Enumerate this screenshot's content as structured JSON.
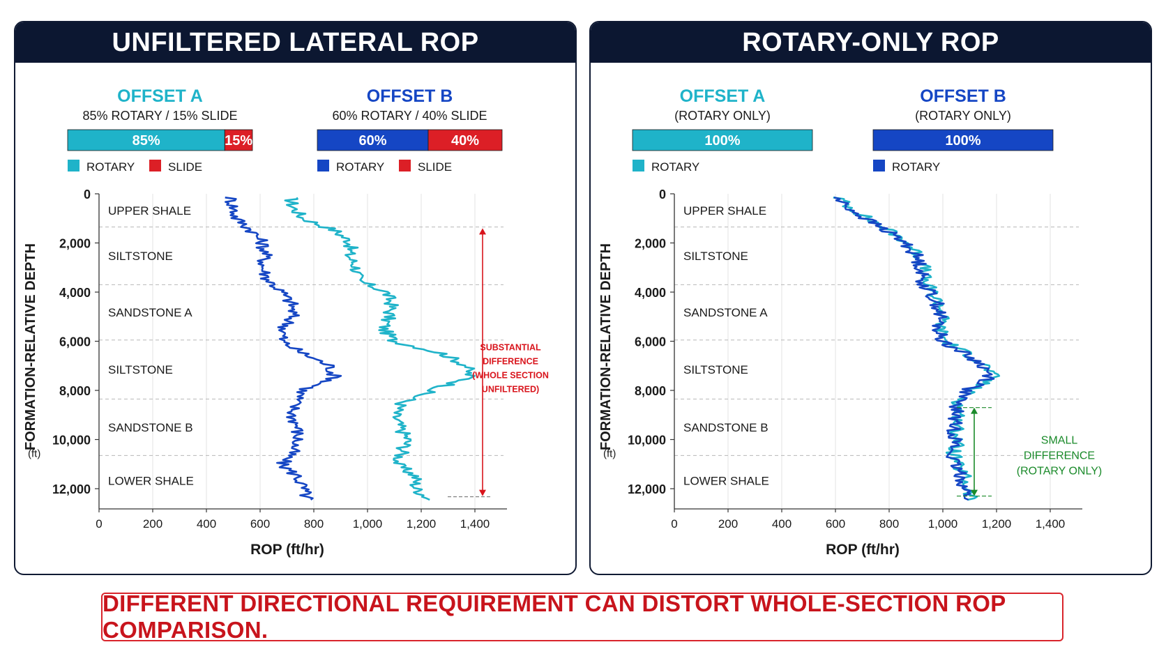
{
  "footer": {
    "text": "DIFFERENT DIRECTIONAL REQUIREMENT CAN DISTORT WHOLE-SECTION ROP COMPARISON."
  },
  "colors": {
    "offset_a": "#1fb3c9",
    "offset_b": "#1546c4",
    "slide": "#dc1f26",
    "header_bg": "#0c1731",
    "note_red": "#d9141c",
    "note_green": "#1a8a2a"
  },
  "panels": [
    {
      "title": "UNFILTERED LATERAL ROP",
      "offsets": [
        {
          "name": "OFFSET A",
          "subtitle": "85% ROTARY / 15% SLIDE",
          "segments": [
            {
              "label": "85%",
              "value": 85,
              "kind": "rotary"
            },
            {
              "label": "15%",
              "value": 15,
              "kind": "slide"
            }
          ],
          "legend": [
            "ROTARY",
            "SLIDE"
          ]
        },
        {
          "name": "OFFSET B",
          "subtitle": "60% ROTARY / 40% SLIDE",
          "segments": [
            {
              "label": "60%",
              "value": 60,
              "kind": "rotary"
            },
            {
              "label": "40%",
              "value": 40,
              "kind": "slide"
            }
          ],
          "legend": [
            "ROTARY",
            "SLIDE"
          ]
        }
      ],
      "annotation": {
        "lines": [
          "SUBSTANTIAL",
          "DIFFERENCE",
          "(WHOLE SECTION",
          "UNFILTERED)"
        ],
        "color": "red",
        "range": [
          1400,
          12300
        ]
      }
    },
    {
      "title": "ROTARY-ONLY ROP",
      "offsets": [
        {
          "name": "OFFSET A",
          "subtitle": "(ROTARY ONLY)",
          "segments": [
            {
              "label": "100%",
              "value": 100,
              "kind": "rotary"
            }
          ],
          "legend": [
            "ROTARY"
          ]
        },
        {
          "name": "OFFSET B",
          "subtitle": "(ROTARY ONLY)",
          "segments": [
            {
              "label": "100%",
              "value": 100,
              "kind": "rotary"
            }
          ],
          "legend": [
            "ROTARY"
          ]
        }
      ],
      "annotation": {
        "lines": [
          "SMALL",
          "DIFFERENCE",
          "(ROTARY ONLY)"
        ],
        "color": "green",
        "range": [
          8700,
          12300
        ]
      }
    }
  ],
  "chart_data": [
    {
      "type": "line",
      "xlabel": "ROP (ft/hr)",
      "ylabel": "FORMATION-RELATIVE DEPTH",
      "ylabel_unit": "(ft)",
      "xlim": [
        0,
        1500
      ],
      "ylim": [
        0,
        12800
      ],
      "xticks": [
        0,
        200,
        400,
        600,
        800,
        1000,
        1200,
        1400
      ],
      "xtick_labels": [
        "0",
        "200",
        "400",
        "600",
        "800",
        "1,000",
        "1,200",
        "1,400"
      ],
      "yticks": [
        0,
        2000,
        4000,
        6000,
        8000,
        10000,
        12000
      ],
      "ytick_labels": [
        "0",
        "2,000",
        "4,000",
        "6,000",
        "8,000",
        "10,000",
        "12,000"
      ],
      "formations": [
        {
          "name": "UPPER SHALE",
          "top": 0,
          "base": 1350
        },
        {
          "name": "SILTSTONE",
          "top": 1350,
          "base": 3700
        },
        {
          "name": "SANDSTONE A",
          "top": 3700,
          "base": 5950
        },
        {
          "name": "SILTSTONE",
          "top": 5950,
          "base": 8350
        },
        {
          "name": "SANDSTONE B",
          "top": 8350,
          "base": 10650
        },
        {
          "name": "LOWER SHALE",
          "top": 10650,
          "base": 12700
        }
      ],
      "series": [
        {
          "name": "OFFSET A",
          "color_key": "offset_a",
          "depth": [
            150,
            500,
            1000,
            1500,
            2000,
            2500,
            3000,
            3500,
            4000,
            4500,
            5000,
            5500,
            6000,
            6500,
            7000,
            7500,
            8000,
            8500,
            9000,
            9500,
            10000,
            10500,
            11000,
            11500,
            12000,
            12500
          ],
          "rop": [
            715,
            720,
            760,
            880,
            940,
            930,
            960,
            960,
            1070,
            1090,
            1080,
            1060,
            1100,
            1280,
            1370,
            1380,
            1240,
            1130,
            1100,
            1120,
            1150,
            1130,
            1110,
            1180,
            1180,
            1240
          ]
        },
        {
          "name": "OFFSET B",
          "color_key": "offset_b",
          "depth": [
            150,
            500,
            1000,
            1500,
            2000,
            2500,
            3000,
            3500,
            4000,
            4500,
            5000,
            5500,
            6000,
            6500,
            7000,
            7500,
            8000,
            8500,
            9000,
            9500,
            10000,
            10500,
            11000,
            11500,
            12000,
            12500
          ],
          "rop": [
            490,
            500,
            510,
            570,
            610,
            620,
            610,
            630,
            680,
            720,
            720,
            690,
            680,
            760,
            860,
            880,
            760,
            730,
            720,
            740,
            740,
            720,
            680,
            740,
            760,
            780
          ]
        }
      ]
    },
    {
      "type": "line",
      "xlabel": "ROP (ft/hr)",
      "ylabel": "FORMATION-RELATIVE DEPTH",
      "ylabel_unit": "(ft)",
      "xlim": [
        0,
        1500
      ],
      "ylim": [
        0,
        12800
      ],
      "xticks": [
        0,
        200,
        400,
        600,
        800,
        1000,
        1200,
        1400
      ],
      "xtick_labels": [
        "0",
        "200",
        "400",
        "600",
        "800",
        "1,000",
        "1,200",
        "1,400"
      ],
      "yticks": [
        0,
        2000,
        4000,
        6000,
        8000,
        10000,
        12000
      ],
      "ytick_labels": [
        "0",
        "2,000",
        "4,000",
        "6,000",
        "8,000",
        "10,000",
        "12,000"
      ],
      "formations": [
        {
          "name": "UPPER SHALE",
          "top": 0,
          "base": 1350
        },
        {
          "name": "SILTSTONE",
          "top": 1350,
          "base": 3700
        },
        {
          "name": "SANDSTONE A",
          "top": 3700,
          "base": 5950
        },
        {
          "name": "SILTSTONE",
          "top": 5950,
          "base": 8350
        },
        {
          "name": "SANDSTONE B",
          "top": 8350,
          "base": 10650
        },
        {
          "name": "LOWER SHALE",
          "top": 10650,
          "base": 12700
        }
      ],
      "series": [
        {
          "name": "OFFSET A",
          "color_key": "offset_a",
          "depth": [
            150,
            500,
            1000,
            1500,
            2000,
            2500,
            3000,
            3500,
            4000,
            4500,
            5000,
            5500,
            6000,
            6500,
            7000,
            7500,
            8000,
            8500,
            9000,
            9500,
            10000,
            10500,
            11000,
            11500,
            12000,
            12500
          ],
          "rop": [
            610,
            650,
            720,
            800,
            870,
            910,
            930,
            930,
            960,
            990,
            1000,
            990,
            1010,
            1090,
            1160,
            1190,
            1100,
            1060,
            1060,
            1050,
            1060,
            1040,
            1050,
            1080,
            1090,
            1110
          ]
        },
        {
          "name": "OFFSET B",
          "color_key": "offset_b",
          "depth": [
            150,
            500,
            1000,
            1500,
            2000,
            2500,
            3000,
            3500,
            4000,
            4500,
            5000,
            5500,
            6000,
            6500,
            7000,
            7500,
            8000,
            8500,
            9000,
            9500,
            10000,
            10500,
            11000,
            11500,
            12000,
            12500
          ],
          "rop": [
            600,
            640,
            710,
            790,
            860,
            900,
            920,
            920,
            950,
            980,
            990,
            980,
            1000,
            1080,
            1150,
            1180,
            1090,
            1050,
            1050,
            1040,
            1050,
            1030,
            1040,
            1070,
            1080,
            1100
          ]
        }
      ]
    }
  ]
}
